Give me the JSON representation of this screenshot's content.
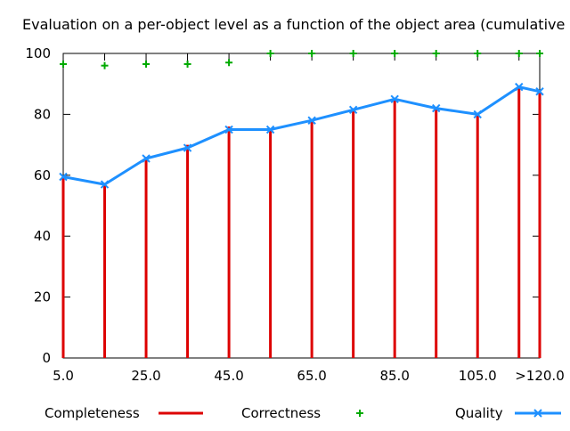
{
  "chart_data": {
    "type": "line",
    "title": "Evaluation on a per-object level as a function of the object area (cumulative",
    "xlabel": "",
    "ylabel": "",
    "ylim": [
      0,
      100
    ],
    "yticks": [
      0,
      20,
      40,
      60,
      80,
      100
    ],
    "x": [
      5,
      15,
      25,
      35,
      45,
      55,
      65,
      75,
      85,
      95,
      105,
      115,
      120
    ],
    "xlim": [
      5,
      120
    ],
    "xticks": [
      {
        "x": 5,
        "label": "5.0"
      },
      {
        "x": 25,
        "label": "25.0"
      },
      {
        "x": 45,
        "label": "45.0"
      },
      {
        "x": 65,
        "label": "65.0"
      },
      {
        "x": 85,
        "label": "85.0"
      },
      {
        "x": 105,
        "label": "105.0"
      },
      {
        "x": 120,
        "label": ">120.0"
      }
    ],
    "grid": false,
    "legend_position": "bottom",
    "series": [
      {
        "name": "Completeness",
        "style": "impulses",
        "color": "#dd0000",
        "values": [
          59.5,
          57.5,
          66,
          70,
          76,
          75,
          78,
          82,
          85,
          82,
          80,
          89,
          88
        ]
      },
      {
        "name": "Correctness",
        "style": "points",
        "color": "#00aa00",
        "marker": "plus",
        "values": [
          96.5,
          96,
          96.5,
          96.5,
          97,
          100,
          100,
          100,
          100,
          100,
          100,
          100,
          100
        ]
      },
      {
        "name": "Quality",
        "style": "linespoints",
        "color": "#1e90ff",
        "marker": "x",
        "values": [
          59.5,
          57,
          65.5,
          69,
          75,
          75,
          78,
          81.5,
          85,
          82,
          80,
          89,
          87.5
        ]
      }
    ]
  }
}
